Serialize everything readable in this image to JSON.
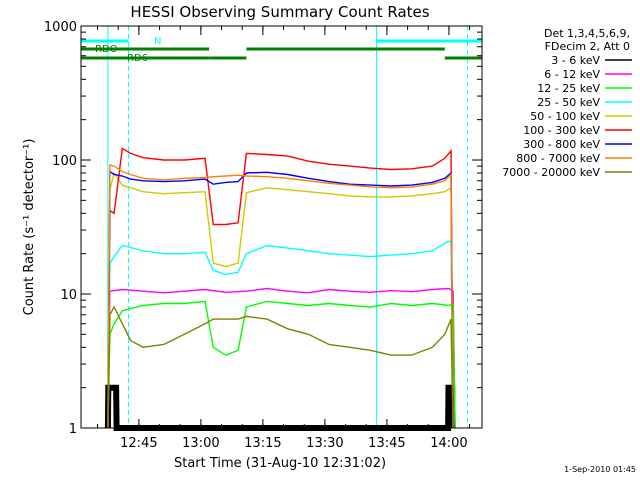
{
  "chart_data": {
    "type": "line",
    "title": "HESSI Observing Summary Count Rates",
    "xlabel": "Start Time (31-Aug-10 12:31:02)",
    "ylabel": "Count Rate (s⁻¹ detector⁻¹)",
    "x_unit": "minutes since 12:31:02",
    "xlim": [
      0,
      97
    ],
    "ylim": [
      1,
      1000
    ],
    "y_scale": "log",
    "grid": false,
    "x_ticks": [
      {
        "value": 14,
        "label": "12:45"
      },
      {
        "value": 29,
        "label": "13:00"
      },
      {
        "value": 44,
        "label": "13:15"
      },
      {
        "value": 59,
        "label": "13:30"
      },
      {
        "value": 74,
        "label": "13:45"
      },
      {
        "value": 89,
        "label": "14:00"
      }
    ],
    "y_ticks": [
      {
        "value": 1,
        "label": "1"
      },
      {
        "value": 10,
        "label": "10"
      },
      {
        "value": 100,
        "label": "100"
      },
      {
        "value": 1000,
        "label": "1000"
      }
    ],
    "legend": {
      "placement": "right",
      "header_lines": [
        "Det 1,3,4,5,6,9,",
        "FDecim 2, Att 0"
      ]
    },
    "series": [
      {
        "name": "3 - 6 keV",
        "color": "#000000",
        "x": [
          6.5,
          6.6,
          8.5,
          8.6,
          88.8,
          88.9,
          89.8,
          89.9
        ],
        "y": [
          1,
          2,
          2,
          1,
          1,
          2,
          2,
          1
        ]
      },
      {
        "name": "6 - 12 keV",
        "color": "#ff00ff",
        "x": [
          6.5,
          7,
          10,
          15,
          20,
          25,
          30,
          35,
          40,
          45,
          50,
          55,
          60,
          65,
          70,
          75,
          80,
          85,
          89,
          90,
          90.5
        ],
        "y": [
          1,
          10.5,
          10.8,
          10.5,
          10.2,
          10.5,
          10.8,
          10.3,
          10.5,
          11,
          10.5,
          10.2,
          10.8,
          10.5,
          10.3,
          10.6,
          10.4,
          10.8,
          11,
          10.5,
          1
        ]
      },
      {
        "name": "12 - 25 keV",
        "color": "#00ff00",
        "x": [
          6.5,
          7,
          8,
          10,
          15,
          20,
          25,
          30,
          32,
          35,
          38,
          40,
          45,
          50,
          55,
          60,
          65,
          70,
          75,
          80,
          85,
          89,
          90,
          90.5
        ],
        "y": [
          1,
          5,
          6,
          7.5,
          8.2,
          8.5,
          8.5,
          8.8,
          4,
          3.5,
          3.8,
          8,
          8.8,
          8.5,
          8.2,
          8.5,
          8.2,
          8,
          8.5,
          8.2,
          8.5,
          8.2,
          8.5,
          1
        ]
      },
      {
        "name": "25 - 50 keV",
        "color": "#00ffff",
        "x": [
          6.5,
          7,
          8,
          10,
          15,
          20,
          25,
          30,
          32,
          35,
          38,
          40,
          45,
          50,
          55,
          60,
          65,
          70,
          75,
          80,
          85,
          88,
          89.5,
          90
        ],
        "y": [
          1,
          17,
          19,
          23,
          21,
          20,
          20,
          20.5,
          15,
          14,
          14.5,
          20,
          23,
          22,
          21,
          20,
          19.5,
          19,
          19.5,
          20,
          21,
          24,
          25,
          1
        ]
      },
      {
        "name": "50 - 100 keV",
        "color": "#cccc00",
        "x": [
          6.5,
          7,
          8,
          10,
          12,
          15,
          20,
          25,
          30,
          32,
          35,
          38,
          40,
          45,
          50,
          55,
          60,
          65,
          70,
          75,
          80,
          85,
          88,
          89.5,
          90
        ],
        "y": [
          1,
          60,
          80,
          65,
          62,
          58,
          56,
          57,
          58,
          17,
          16,
          17,
          57,
          62,
          60,
          58,
          56,
          54,
          53,
          53,
          54,
          56,
          58,
          62,
          1
        ]
      },
      {
        "name": "100 - 300 keV",
        "color": "#ff0000",
        "x": [
          6.5,
          7,
          8,
          10,
          12,
          15,
          20,
          25,
          30,
          32,
          35,
          38,
          40,
          45,
          50,
          55,
          60,
          65,
          70,
          75,
          80,
          85,
          88,
          89.5,
          90
        ],
        "y": [
          1,
          42,
          40,
          122,
          112,
          104,
          100,
          100,
          103,
          33,
          33,
          34,
          112,
          110,
          107,
          98,
          93,
          90,
          87,
          85,
          86,
          90,
          103,
          117,
          1
        ]
      },
      {
        "name": "300 - 800 keV",
        "color": "#0000ff",
        "x": [
          6.5,
          7,
          8,
          10,
          12,
          15,
          20,
          25,
          30,
          32,
          35,
          38,
          40,
          45,
          50,
          55,
          60,
          65,
          70,
          75,
          80,
          85,
          88,
          89.5,
          90
        ],
        "y": [
          1,
          82,
          78,
          76,
          72,
          70,
          69,
          70,
          72,
          66,
          68,
          69,
          80,
          81,
          78,
          73,
          69,
          66,
          65,
          64,
          65,
          68,
          73,
          80,
          1
        ]
      },
      {
        "name": "800 - 7000 keV",
        "color": "#ff8000",
        "x": [
          6.5,
          7,
          8,
          10,
          12,
          15,
          20,
          25,
          30,
          32,
          35,
          38,
          40,
          45,
          50,
          55,
          60,
          65,
          70,
          75,
          80,
          85,
          88,
          89.5,
          90
        ],
        "y": [
          1,
          92,
          90,
          82,
          78,
          73,
          71,
          73,
          74,
          75,
          76,
          77,
          76,
          75,
          73,
          70,
          67,
          65,
          63,
          62,
          63,
          66,
          70,
          78,
          1
        ]
      },
      {
        "name": "7000 - 20000 keV",
        "color": "#808000",
        "x": [
          6.5,
          7,
          8,
          10,
          12,
          15,
          20,
          25,
          30,
          32,
          35,
          38,
          40,
          45,
          50,
          55,
          60,
          65,
          70,
          75,
          80,
          85,
          88,
          89.5,
          90
        ],
        "y": [
          1,
          7,
          8,
          6,
          4.5,
          4,
          4.2,
          5,
          6,
          6.5,
          6.5,
          6.5,
          6.8,
          6.5,
          5.5,
          5,
          4.2,
          4,
          3.8,
          3.5,
          3.5,
          4,
          5,
          6.5,
          1
        ]
      }
    ],
    "annotations": [
      {
        "text": "RDO",
        "color": "#008000"
      },
      {
        "text": "RD6",
        "color": "#008000"
      },
      {
        "text": "N",
        "color": "#00ffff"
      }
    ],
    "vertical_markers": [
      {
        "x": 6.5,
        "style": "solid",
        "color": "#00ffff"
      },
      {
        "x": 11.5,
        "style": "dashed",
        "color": "#00ffff"
      },
      {
        "x": 71.5,
        "style": "solid",
        "color": "#00ffff"
      },
      {
        "x": 93.5,
        "style": "dashed",
        "color": "#00ffff"
      }
    ],
    "flag_bars": [
      {
        "name": "cyan-top",
        "color": "#00ffff",
        "segments": [
          [
            -3,
            11.5
          ],
          [
            71.5,
            97
          ]
        ]
      },
      {
        "name": "green-rdo",
        "color": "#008000",
        "segments": [
          [
            -2,
            31
          ],
          [
            40,
            88
          ]
        ]
      },
      {
        "name": "green-rd6",
        "color": "#008000",
        "segments": [
          [
            -3,
            31
          ],
          [
            31,
            40
          ],
          [
            88,
            97
          ]
        ]
      }
    ]
  },
  "footer": {
    "timestamp": "1-Sep-2010 01:45"
  }
}
